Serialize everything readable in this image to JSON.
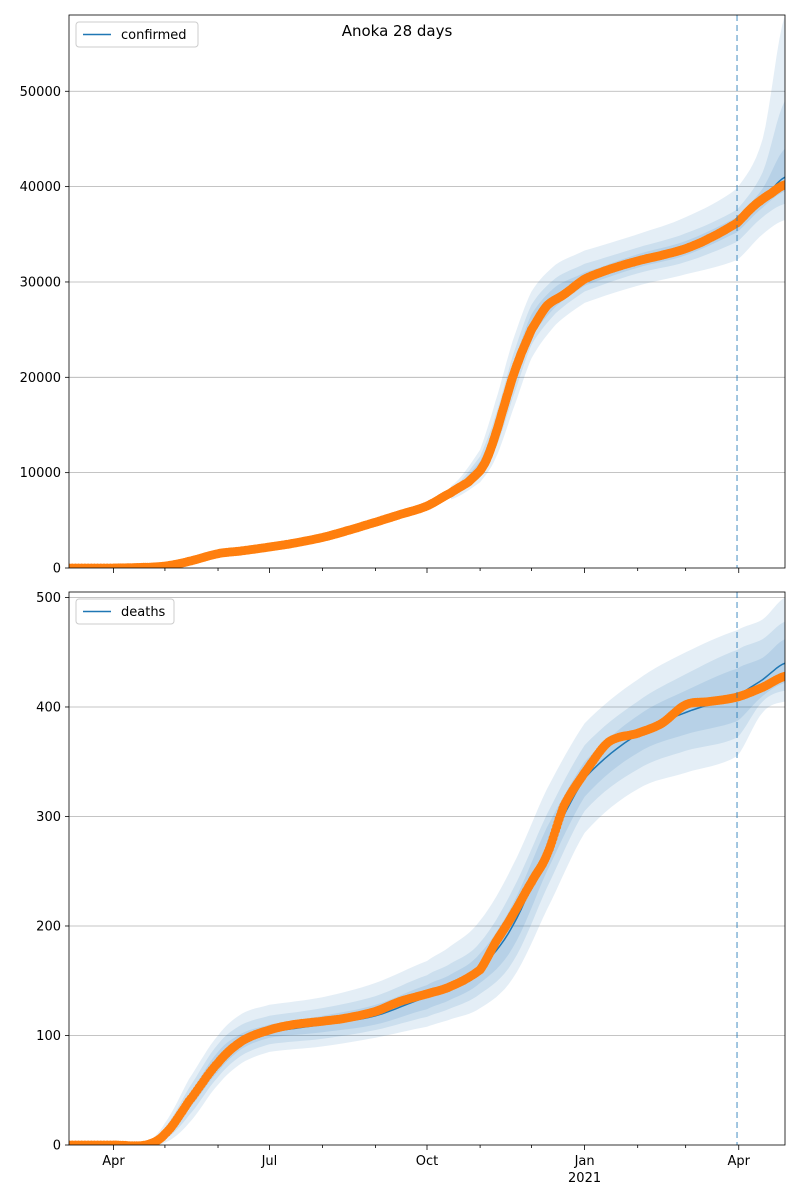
{
  "title": "Anoka 28 days",
  "colors": {
    "line": "#1f77b4",
    "points": "#ff7f0e",
    "band": "#1f77b4",
    "grid": "#b0b0b0",
    "forecast_line": "#1f77b4"
  },
  "chart_data": [
    {
      "type": "line",
      "name": "confirmed-panel",
      "legend": "confirmed",
      "legend_position": "top-left",
      "grid": "horizontal",
      "x_range": [
        "2020-03-06",
        "2021-04-28"
      ],
      "ylim": [
        0,
        58000
      ],
      "y_ticks": [
        0,
        10000,
        20000,
        30000,
        40000,
        50000
      ],
      "forecast_start": "2021-03-31",
      "observed": {
        "x": [
          "2020-03-06",
          "2020-04-01",
          "2020-04-15",
          "2020-05-01",
          "2020-05-15",
          "2020-06-01",
          "2020-06-15",
          "2020-07-01",
          "2020-07-15",
          "2020-08-01",
          "2020-08-15",
          "2020-09-01",
          "2020-09-15",
          "2020-10-01",
          "2020-10-15",
          "2020-10-25",
          "2020-11-01",
          "2020-11-05",
          "2020-11-10",
          "2020-11-15",
          "2020-11-20",
          "2020-11-25",
          "2020-12-01",
          "2020-12-10",
          "2020-12-20",
          "2021-01-01",
          "2021-01-15",
          "2021-02-01",
          "2021-02-15",
          "2021-03-01",
          "2021-03-15",
          "2021-03-31",
          "2021-04-10",
          "2021-04-20",
          "2021-04-28"
        ],
        "y": [
          0,
          0,
          50,
          200,
          700,
          1500,
          1800,
          2200,
          2600,
          3200,
          3900,
          4800,
          5600,
          6500,
          7900,
          9000,
          10200,
          11500,
          14000,
          17000,
          20000,
          22500,
          25000,
          27500,
          28700,
          30300,
          31300,
          32200,
          32800,
          33500,
          34600,
          36200,
          38000,
          39300,
          40200
        ]
      },
      "model": {
        "x": [
          "2020-03-06",
          "2020-04-15",
          "2020-05-15",
          "2020-06-15",
          "2020-07-15",
          "2020-08-15",
          "2020-09-15",
          "2020-10-15",
          "2020-11-01",
          "2020-11-10",
          "2020-11-20",
          "2020-12-01",
          "2020-12-15",
          "2021-01-01",
          "2021-02-01",
          "2021-03-01",
          "2021-03-31",
          "2021-04-15",
          "2021-04-28"
        ],
        "y": [
          0,
          50,
          700,
          1800,
          2600,
          3900,
          5600,
          7900,
          10500,
          14200,
          20000,
          25300,
          28300,
          30300,
          32200,
          33500,
          36000,
          38600,
          41000
        ]
      },
      "bands": [
        {
          "x": [
            "2020-10-15",
            "2020-11-01",
            "2020-11-10",
            "2020-11-20",
            "2020-12-01",
            "2020-12-15",
            "2021-01-01",
            "2021-02-01",
            "2021-03-01",
            "2021-03-31",
            "2021-04-15",
            "2021-04-28"
          ],
          "upper": [
            8600,
            12400,
            17500,
            23800,
            29000,
            31800,
            33300,
            35000,
            36800,
            39800,
            45000,
            58000
          ],
          "lower": [
            7200,
            9000,
            11500,
            16500,
            22000,
            25500,
            27800,
            29600,
            30800,
            32300,
            35000,
            36500
          ]
        },
        {
          "x": [
            "2020-10-15",
            "2020-11-01",
            "2020-11-10",
            "2020-11-20",
            "2020-12-01",
            "2020-12-15",
            "2021-01-01",
            "2021-02-01",
            "2021-03-01",
            "2021-03-31",
            "2021-04-15",
            "2021-04-28"
          ],
          "upper": [
            8300,
            11700,
            16000,
            22200,
            27600,
            30400,
            31900,
            33600,
            35100,
            37600,
            41500,
            49000
          ],
          "lower": [
            7500,
            9500,
            12500,
            17800,
            23400,
            26700,
            29000,
            30900,
            32100,
            34200,
            36800,
            38200
          ]
        },
        {
          "x": [
            "2020-10-15",
            "2020-11-01",
            "2020-11-10",
            "2020-11-20",
            "2020-12-01",
            "2020-12-15",
            "2021-01-01",
            "2021-02-01",
            "2021-03-01",
            "2021-03-31",
            "2021-04-15",
            "2021-04-28"
          ],
          "upper": [
            8100,
            11200,
            15200,
            21200,
            26600,
            29500,
            31000,
            32900,
            34300,
            36800,
            39800,
            44000
          ],
          "lower": [
            7700,
            9900,
            13200,
            18800,
            24200,
            27400,
            29600,
            31500,
            32800,
            35200,
            37800,
            39500
          ]
        }
      ]
    },
    {
      "type": "line",
      "name": "deaths-panel",
      "legend": "deaths",
      "legend_position": "top-left",
      "grid": "horizontal",
      "x_range": [
        "2020-03-06",
        "2021-04-28"
      ],
      "ylim": [
        0,
        505
      ],
      "y_ticks": [
        0,
        100,
        200,
        300,
        400,
        500
      ],
      "x_ticks": [
        {
          "date": "2020-04-01",
          "label": "Apr"
        },
        {
          "date": "2020-07-01",
          "label": "Jul"
        },
        {
          "date": "2020-10-01",
          "label": "Oct"
        },
        {
          "date": "2021-01-01",
          "label": "Jan",
          "sub": "2021"
        },
        {
          "date": "2021-04-01",
          "label": "Apr"
        }
      ],
      "forecast_start": "2021-03-31",
      "observed": {
        "x": [
          "2020-03-06",
          "2020-04-01",
          "2020-04-20",
          "2020-05-01",
          "2020-05-15",
          "2020-06-01",
          "2020-06-15",
          "2020-07-01",
          "2020-07-15",
          "2020-08-01",
          "2020-08-15",
          "2020-09-01",
          "2020-09-15",
          "2020-10-01",
          "2020-10-15",
          "2020-11-01",
          "2020-11-10",
          "2020-11-20",
          "2020-12-01",
          "2020-12-10",
          "2020-12-20",
          "2021-01-01",
          "2021-01-15",
          "2021-02-01",
          "2021-02-15",
          "2021-03-01",
          "2021-03-15",
          "2021-03-31",
          "2021-04-15",
          "2021-04-28"
        ],
        "y": [
          0,
          0,
          0,
          10,
          40,
          75,
          95,
          105,
          110,
          113,
          116,
          122,
          131,
          138,
          145,
          160,
          185,
          210,
          240,
          265,
          310,
          340,
          368,
          376,
          385,
          402,
          405,
          409,
          418,
          428
        ]
      },
      "model": {
        "x": [
          "2020-03-06",
          "2020-04-20",
          "2020-05-01",
          "2020-05-15",
          "2020-06-01",
          "2020-06-15",
          "2020-07-01",
          "2020-08-01",
          "2020-09-01",
          "2020-10-01",
          "2020-10-15",
          "2020-11-01",
          "2020-11-20",
          "2020-12-10",
          "2021-01-01",
          "2021-02-01",
          "2021-03-01",
          "2021-03-31",
          "2021-04-15",
          "2021-04-28"
        ],
        "y": [
          0,
          0,
          10,
          40,
          75,
          92,
          103,
          110,
          118,
          135,
          145,
          162,
          200,
          270,
          335,
          375,
          395,
          410,
          425,
          440
        ]
      },
      "bands": [
        {
          "x": [
            "2020-04-20",
            "2020-05-01",
            "2020-05-15",
            "2020-06-01",
            "2020-06-15",
            "2020-07-01",
            "2020-08-01",
            "2020-09-01",
            "2020-10-01",
            "2020-10-15",
            "2020-11-01",
            "2020-11-20",
            "2020-12-10",
            "2021-01-01",
            "2021-02-01",
            "2021-03-01",
            "2021-03-31",
            "2021-04-15",
            "2021-04-28"
          ],
          "upper": [
            2,
            20,
            60,
            100,
            120,
            128,
            135,
            148,
            168,
            182,
            205,
            255,
            325,
            385,
            425,
            450,
            470,
            480,
            500
          ],
          "lower": [
            0,
            2,
            20,
            55,
            75,
            85,
            90,
            98,
            108,
            115,
            125,
            152,
            215,
            285,
            325,
            340,
            355,
            395,
            405
          ]
        },
        {
          "x": [
            "2020-04-20",
            "2020-05-01",
            "2020-05-15",
            "2020-06-01",
            "2020-06-15",
            "2020-07-01",
            "2020-08-01",
            "2020-09-01",
            "2020-10-01",
            "2020-10-15",
            "2020-11-01",
            "2020-11-20",
            "2020-12-10",
            "2021-01-01",
            "2021-02-01",
            "2021-03-01",
            "2021-03-31",
            "2021-04-15",
            "2021-04-28"
          ],
          "upper": [
            1,
            16,
            52,
            92,
            110,
            118,
            125,
            136,
            155,
            166,
            185,
            233,
            302,
            365,
            405,
            430,
            452,
            462,
            478
          ],
          "lower": [
            0,
            5,
            27,
            62,
            82,
            92,
            97,
            105,
            117,
            125,
            138,
            167,
            235,
            305,
            343,
            360,
            372,
            405,
            415
          ]
        },
        {
          "x": [
            "2020-04-20",
            "2020-05-01",
            "2020-05-15",
            "2020-06-01",
            "2020-06-15",
            "2020-07-01",
            "2020-08-01",
            "2020-09-01",
            "2020-10-01",
            "2020-10-15",
            "2020-11-01",
            "2020-11-20",
            "2020-12-10",
            "2021-01-01",
            "2021-02-01",
            "2021-03-01",
            "2021-03-31",
            "2021-04-15",
            "2021-04-28"
          ],
          "upper": [
            0,
            13,
            46,
            85,
            102,
            110,
            118,
            128,
            146,
            156,
            175,
            220,
            290,
            350,
            392,
            415,
            435,
            445,
            462
          ],
          "lower": [
            0,
            7,
            33,
            67,
            88,
            98,
            103,
            110,
            124,
            133,
            148,
            180,
            250,
            318,
            358,
            375,
            387,
            410,
            422
          ]
        }
      ]
    }
  ]
}
